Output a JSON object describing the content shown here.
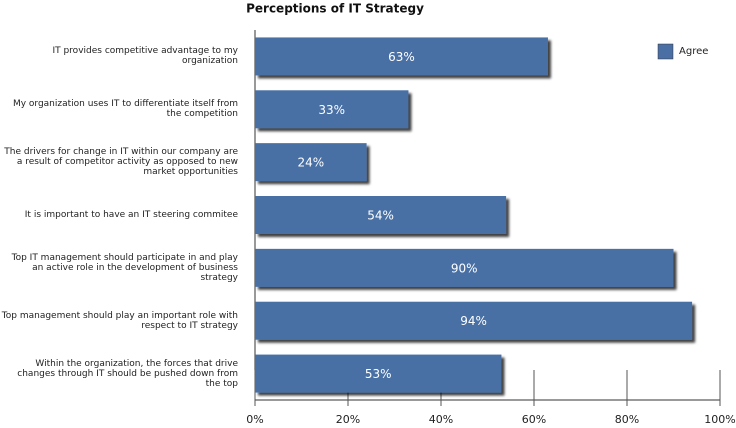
{
  "chart_data": {
    "type": "bar",
    "orientation": "horizontal",
    "title": "Perceptions of IT Strategy",
    "categories": [
      "IT provides competitive advantage to my organization",
      "My organization uses IT to differentiate itself from the competition",
      "The drivers for change in IT within our company are a result of competitor activity as opposed to new market opportunities",
      "It is important to have an IT steering commitee",
      "Top IT management should participate in and play an active role in the development of business strategy",
      "Top management should play an important role with respect to IT strategy",
      "Within the organization, the forces that drive changes through IT should be pushed down from the top"
    ],
    "series": [
      {
        "name": "Agree",
        "color": "#4a6fa5",
        "values": [
          63,
          33,
          24,
          54,
          90,
          94,
          53
        ],
        "value_labels": [
          "63%",
          "33%",
          "24%",
          "54%",
          "90%",
          "94%",
          "53%"
        ]
      }
    ],
    "xlim": [
      0,
      100
    ],
    "xticks": [
      {
        "value": 0,
        "label": "0%"
      },
      {
        "value": 20,
        "label": "20%"
      },
      {
        "value": 40,
        "label": "40%"
      },
      {
        "value": 60,
        "label": "60%"
      },
      {
        "value": 80,
        "label": "80%"
      },
      {
        "value": 100,
        "label": "100%"
      }
    ],
    "legend": "top-right"
  }
}
